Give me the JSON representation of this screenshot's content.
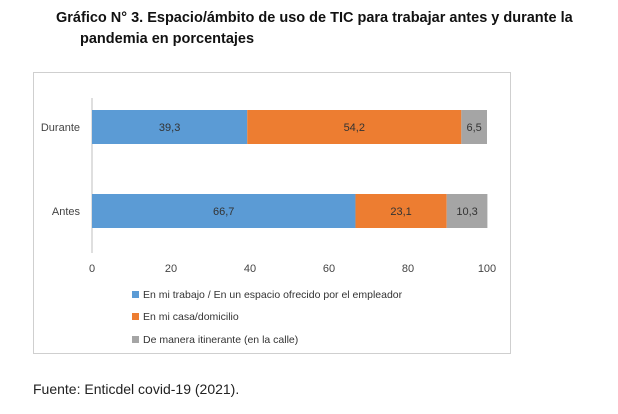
{
  "title_line1": "Gráfico N° 3. Espacio/ámbito de uso de TIC para trabajar antes y durante la",
  "title_line2": "pandemia en porcentajes",
  "source": "Fuente: Enticdel covid-19 (2021).",
  "chart_data": {
    "type": "bar",
    "orientation": "horizontal",
    "stacked": true,
    "categories": [
      "Durante",
      "Antes"
    ],
    "series": [
      {
        "name": "En mi trabajo / En un espacio ofrecido por el empleador",
        "color": "#5b9bd5",
        "values": [
          39.3,
          66.7
        ],
        "labels": [
          "39,3",
          "66,7"
        ]
      },
      {
        "name": "En mi casa/domicilio",
        "color": "#ed7d31",
        "values": [
          54.2,
          23.1
        ],
        "labels": [
          "54,2",
          "23,1"
        ]
      },
      {
        "name": "De manera itinerante (en la calle)",
        "color": "#a5a5a5",
        "values": [
          6.5,
          10.3
        ],
        "labels": [
          "6,5",
          "10,3"
        ]
      }
    ],
    "xlim": [
      0,
      100
    ],
    "xticks": [
      "0",
      "20",
      "40",
      "60",
      "80",
      "100"
    ],
    "legend_position": "bottom-left",
    "grid": false
  }
}
